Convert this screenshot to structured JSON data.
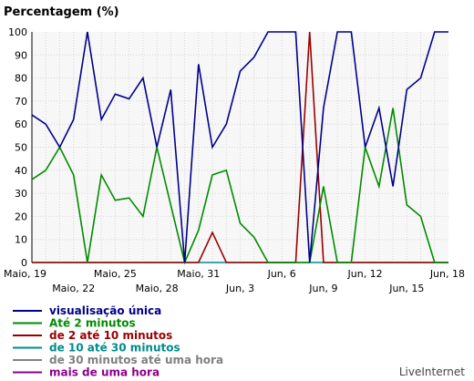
{
  "chart_data": {
    "type": "line",
    "title": "Percentagem (%)",
    "ylim": [
      0,
      100
    ],
    "y_ticks": [
      0,
      10,
      20,
      30,
      40,
      50,
      60,
      70,
      80,
      90,
      100
    ],
    "grid": true,
    "legend_position": "bottom-left",
    "x_ticks_row1": [
      "Maio, 19",
      "Maio, 25",
      "Maio, 31",
      "Jun, 6",
      "Jun, 12",
      "Jun, 18"
    ],
    "x_ticks_row2": [
      "Maio, 22",
      "Maio, 28",
      "Jun, 3",
      "Jun, 9",
      "Jun, 15"
    ],
    "series": [
      {
        "name": "visualisação única",
        "color": "#00008b",
        "points": [
          [
            "Maio, 19",
            64
          ],
          [
            "Maio, 20",
            60
          ],
          [
            "Maio, 21",
            50
          ],
          [
            "Maio, 22",
            62
          ],
          [
            "Maio, 23",
            100
          ],
          [
            "Maio, 24",
            62
          ],
          [
            "Maio, 25",
            73
          ],
          [
            "Maio, 26",
            71
          ],
          [
            "Maio, 27",
            80
          ],
          [
            "Maio, 28",
            50
          ],
          [
            "Maio, 29",
            75
          ],
          [
            "Maio, 30",
            0
          ],
          [
            "Maio, 31",
            86
          ],
          [
            "Jun, 1",
            50
          ],
          [
            "Jun, 2",
            60
          ],
          [
            "Jun, 3",
            83
          ],
          [
            "Jun, 4",
            89
          ],
          [
            "Jun, 5",
            100
          ],
          [
            "Jun, 6",
            100
          ],
          [
            "Jun, 7",
            100
          ],
          [
            "Jun, 8",
            0
          ],
          [
            "Jun, 9",
            67
          ],
          [
            "Jun, 10",
            100
          ],
          [
            "Jun, 11",
            100
          ],
          [
            "Jun, 12",
            50
          ],
          [
            "Jun, 13",
            67
          ],
          [
            "Jun, 14",
            33
          ],
          [
            "Jun, 15",
            75
          ],
          [
            "Jun, 16",
            80
          ],
          [
            "Jun, 17",
            100
          ],
          [
            "Jun, 18",
            100
          ]
        ]
      },
      {
        "name": "Até 2 minutos",
        "color": "#008b00",
        "points": [
          [
            "Maio, 19",
            36
          ],
          [
            "Maio, 20",
            40
          ],
          [
            "Maio, 21",
            50
          ],
          [
            "Maio, 22",
            38
          ],
          [
            "Maio, 23",
            0
          ],
          [
            "Maio, 24",
            38
          ],
          [
            "Maio, 25",
            27
          ],
          [
            "Maio, 26",
            28
          ],
          [
            "Maio, 27",
            20
          ],
          [
            "Maio, 28",
            50
          ],
          [
            "Maio, 29",
            25
          ],
          [
            "Maio, 30",
            0
          ],
          [
            "Maio, 31",
            14
          ],
          [
            "Jun, 1",
            38
          ],
          [
            "Jun, 2",
            40
          ],
          [
            "Jun, 3",
            17
          ],
          [
            "Jun, 4",
            11
          ],
          [
            "Jun, 5",
            0
          ],
          [
            "Jun, 6",
            0
          ],
          [
            "Jun, 7",
            0
          ],
          [
            "Jun, 8",
            0
          ],
          [
            "Jun, 9",
            33
          ],
          [
            "Jun, 10",
            0
          ],
          [
            "Jun, 11",
            0
          ],
          [
            "Jun, 12",
            50
          ],
          [
            "Jun, 13",
            33
          ],
          [
            "Jun, 14",
            67
          ],
          [
            "Jun, 15",
            25
          ],
          [
            "Jun, 16",
            20
          ],
          [
            "Jun, 17",
            0
          ],
          [
            "Jun, 18",
            0
          ]
        ]
      },
      {
        "name": "de 2 até 10 minutos",
        "color": "#9b0000",
        "points": [
          [
            "Maio, 19",
            0
          ],
          [
            "Maio, 20",
            0
          ],
          [
            "Maio, 21",
            0
          ],
          [
            "Maio, 22",
            0
          ],
          [
            "Maio, 23",
            0
          ],
          [
            "Maio, 24",
            0
          ],
          [
            "Maio, 25",
            0
          ],
          [
            "Maio, 26",
            0
          ],
          [
            "Maio, 27",
            0
          ],
          [
            "Maio, 28",
            0
          ],
          [
            "Maio, 29",
            0
          ],
          [
            "Maio, 30",
            0
          ],
          [
            "Maio, 31",
            0
          ],
          [
            "Jun, 1",
            13
          ],
          [
            "Jun, 2",
            0
          ],
          [
            "Jun, 3",
            0
          ],
          [
            "Jun, 4",
            0
          ],
          [
            "Jun, 5",
            0
          ],
          [
            "Jun, 6",
            0
          ],
          [
            "Jun, 7",
            0
          ],
          [
            "Jun, 8",
            100
          ],
          [
            "Jun, 9",
            0
          ],
          [
            "Jun, 10",
            0
          ],
          [
            "Jun, 11",
            0
          ],
          [
            "Jun, 12",
            0
          ],
          [
            "Jun, 13",
            0
          ],
          [
            "Jun, 14",
            0
          ],
          [
            "Jun, 15",
            0
          ],
          [
            "Jun, 16",
            0
          ],
          [
            "Jun, 17",
            0
          ],
          [
            "Jun, 18",
            0
          ]
        ]
      },
      {
        "name": "de 10 até 30 minutos",
        "color": "#008b8b",
        "points": [
          [
            "Maio, 19",
            0
          ],
          [
            "Maio, 20",
            0
          ],
          [
            "Maio, 21",
            0
          ],
          [
            "Maio, 22",
            0
          ],
          [
            "Maio, 23",
            0
          ],
          [
            "Maio, 24",
            0
          ],
          [
            "Maio, 25",
            0
          ],
          [
            "Maio, 26",
            0
          ],
          [
            "Maio, 27",
            0
          ],
          [
            "Maio, 28",
            0
          ],
          [
            "Maio, 29",
            0
          ],
          [
            "Maio, 30",
            0
          ],
          [
            "Maio, 31",
            0
          ],
          [
            "Jun, 1",
            0
          ],
          [
            "Jun, 2",
            0
          ],
          [
            "Jun, 3",
            0
          ],
          [
            "Jun, 4",
            0
          ],
          [
            "Jun, 5",
            0
          ],
          [
            "Jun, 6",
            0
          ],
          [
            "Jun, 7",
            0
          ],
          [
            "Jun, 8",
            0
          ],
          [
            "Jun, 9",
            0
          ],
          [
            "Jun, 10",
            0
          ],
          [
            "Jun, 11",
            0
          ],
          [
            "Jun, 12",
            0
          ],
          [
            "Jun, 13",
            0
          ],
          [
            "Jun, 14",
            0
          ],
          [
            "Jun, 15",
            0
          ],
          [
            "Jun, 16",
            0
          ],
          [
            "Jun, 17",
            0
          ],
          [
            "Jun, 18",
            0
          ]
        ]
      },
      {
        "name": "de 30 minutos até uma hora",
        "color": "#808080",
        "points": []
      },
      {
        "name": "mais de uma hora",
        "color": "#8b008b",
        "points": []
      }
    ],
    "brand": "LiveInternet"
  }
}
